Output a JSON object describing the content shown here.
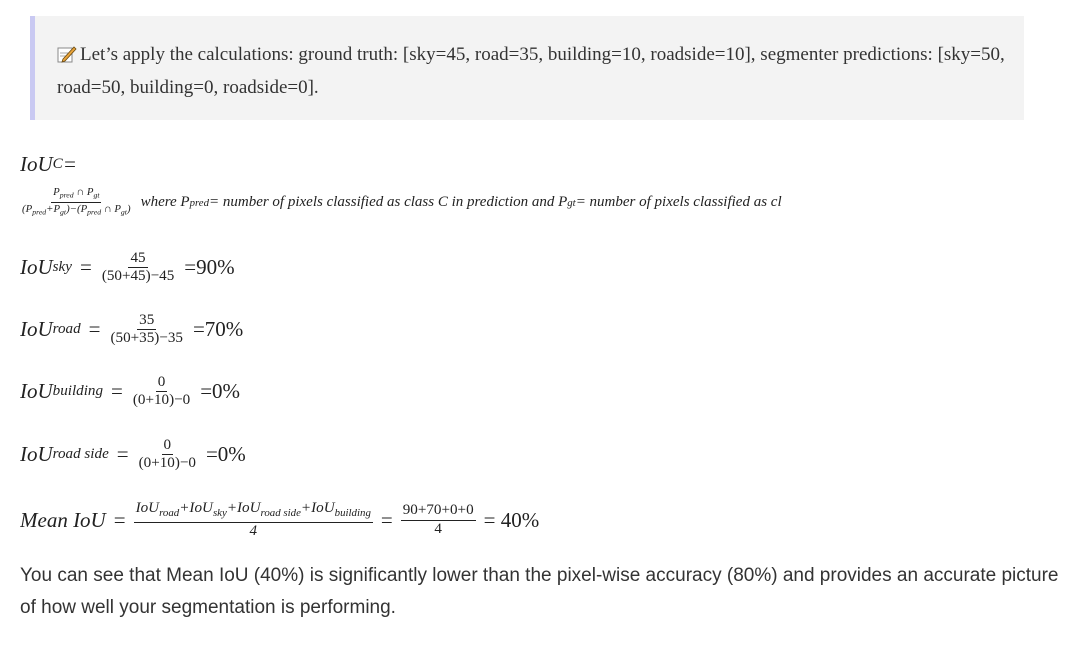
{
  "callout": "Let’s apply the calculations: ground truth: [sky=45, road=35, building=10, roadside=10], segmenter predictions: [sky=50, road=50, building=0, roadside=0].",
  "equations": [
    [
      {
        "italic": true,
        "text": [
          "IoU",
          {
            "sub": "C"
          },
          " ="
        ]
      }
    ],
    [
      {
        "italic": true,
        "num": [
          "P",
          {
            "sub": "pred"
          },
          " ∩ P",
          {
            "sub": "gt"
          }
        ],
        "den": [
          "(P",
          {
            "sub": "pred"
          },
          "+P",
          {
            "sub": "gt"
          },
          ")−(P",
          {
            "sub": "pred"
          },
          " ∩ P",
          {
            "sub": "gt"
          },
          ")"
        ]
      },
      {
        "italic": true,
        "text": [
          "where P",
          {
            "sub": "pred"
          },
          " = number of pixels classified as class C in prediction and P",
          {
            "sub": "gt"
          },
          " = number of pixels classified as cl"
        ]
      }
    ],
    [
      {
        "italic": true,
        "text": [
          "IoU",
          {
            "sub": "sky"
          }
        ]
      },
      {
        "italic": false,
        "text": [
          "="
        ]
      },
      {
        "italic": false,
        "num": [
          "45"
        ],
        "den": [
          "(50+45)−45"
        ]
      },
      {
        "italic": false,
        "text": [
          "=90%"
        ]
      }
    ],
    [
      {
        "italic": true,
        "text": [
          "IoU",
          {
            "sub": "road"
          }
        ]
      },
      {
        "italic": false,
        "text": [
          "="
        ]
      },
      {
        "italic": false,
        "num": [
          "35"
        ],
        "den": [
          "(50+35)−35"
        ]
      },
      {
        "italic": false,
        "text": [
          "=70%"
        ]
      }
    ],
    [
      {
        "italic": true,
        "text": [
          "IoU",
          {
            "sub": "building"
          }
        ]
      },
      {
        "italic": false,
        "text": [
          "="
        ]
      },
      {
        "italic": false,
        "num": [
          "0"
        ],
        "den": [
          "(0+10)−0"
        ]
      },
      {
        "italic": false,
        "text": [
          "=0%"
        ]
      }
    ],
    [
      {
        "italic": true,
        "text": [
          "IoU",
          {
            "sub": "road side"
          }
        ]
      },
      {
        "italic": false,
        "text": [
          "="
        ]
      },
      {
        "italic": false,
        "num": [
          "0"
        ],
        "den": [
          "(0+10)−0"
        ]
      },
      {
        "italic": false,
        "text": [
          "=0%"
        ]
      }
    ],
    [
      {
        "italic": true,
        "text": [
          "Mean IoU"
        ]
      },
      {
        "italic": false,
        "text": [
          "="
        ]
      },
      {
        "italic": true,
        "num": [
          "IoU",
          {
            "sub": "road"
          },
          "+IoU",
          {
            "sub": "sky"
          },
          "+IoU",
          {
            "sub": "road side"
          },
          "+IoU",
          {
            "sub": "building"
          }
        ],
        "den": [
          "4"
        ]
      },
      {
        "italic": false,
        "text": [
          "="
        ]
      },
      {
        "italic": false,
        "num": [
          "90+70+0+0"
        ],
        "den": [
          "4"
        ]
      },
      {
        "italic": false,
        "text": [
          "= 40%"
        ]
      }
    ]
  ],
  "paragraph": "You can see that Mean IoU (40%) is significantly lower than the pixel-wise accuracy (80%) and provides an accurate picture of how well your segmentation is performing."
}
